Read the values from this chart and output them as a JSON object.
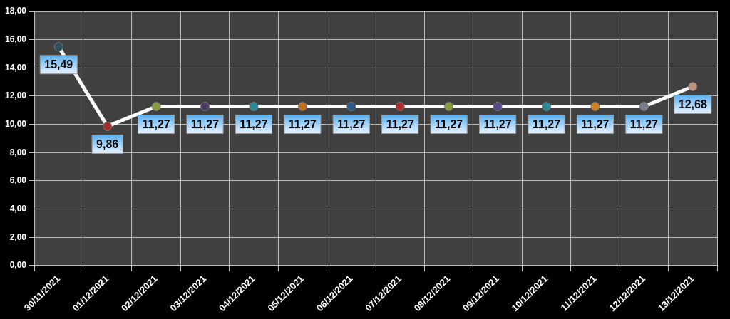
{
  "chart_data": {
    "type": "line",
    "categories": [
      "30/11/2021",
      "01/12/2021",
      "02/12/2021",
      "03/12/2021",
      "04/12/2021",
      "05/12/2021",
      "06/12/2021",
      "07/12/2021",
      "08/12/2021",
      "09/12/2021",
      "10/12/2021",
      "11/12/2021",
      "12/12/2021",
      "13/12/2021"
    ],
    "series": [
      {
        "color": "#ffffff",
        "values": [
          15.49,
          9.86,
          11.27,
          11.27,
          11.27,
          11.27,
          11.27,
          11.27,
          11.27,
          11.27,
          11.27,
          11.27,
          11.27,
          12.68
        ],
        "colors": [
          "#2f4f5f",
          "#a03030",
          "#8a9a40",
          "#4a3a6a",
          "#2a8a9a",
          "#c07020",
          "#2a5a8a",
          "#b03030",
          "#8a9a40",
          "#5a4a8a",
          "#2a8a9a",
          "#d08020",
          "#7a7a8a",
          "#c09080"
        ],
        "value_labels": [
          "15,49",
          "9,86",
          "11,27",
          "11,27",
          "11,27",
          "11,27",
          "11,27",
          "11,27",
          "11,27",
          "11,27",
          "11,27",
          "11,27",
          "11,27",
          "12,68"
        ]
      }
    ],
    "ylim": [
      0,
      18
    ],
    "yticks": [
      {
        "value": 0,
        "label": "0,00"
      },
      {
        "value": 2,
        "label": "2,00"
      },
      {
        "value": 4,
        "label": "4,00"
      },
      {
        "value": 6,
        "label": "6,00"
      },
      {
        "value": 8,
        "label": "8,00"
      },
      {
        "value": 10,
        "label": "10,00"
      },
      {
        "value": 12,
        "label": "12,00"
      },
      {
        "value": 14,
        "label": "14,00"
      },
      {
        "value": 16,
        "label": "16,00"
      },
      {
        "value": 18,
        "label": "18,00"
      }
    ],
    "grid": true,
    "marker": "circle",
    "line_style": "solid"
  }
}
